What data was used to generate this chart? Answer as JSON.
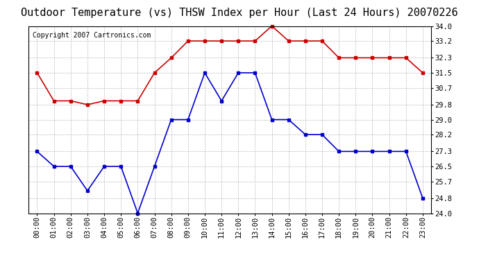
{
  "title": "Outdoor Temperature (vs) THSW Index per Hour (Last 24 Hours) 20070226",
  "copyright": "Copyright 2007 Cartronics.com",
  "hours": [
    "00:00",
    "01:00",
    "02:00",
    "03:00",
    "04:00",
    "05:00",
    "06:00",
    "07:00",
    "08:00",
    "09:00",
    "10:00",
    "11:00",
    "12:00",
    "13:00",
    "14:00",
    "15:00",
    "16:00",
    "17:00",
    "18:00",
    "19:00",
    "20:00",
    "21:00",
    "22:00",
    "23:00"
  ],
  "temp": [
    27.3,
    26.5,
    26.5,
    25.2,
    26.5,
    26.5,
    24.0,
    26.5,
    29.0,
    29.0,
    31.5,
    30.0,
    31.5,
    31.5,
    29.0,
    29.0,
    28.2,
    28.2,
    27.3,
    27.3,
    27.3,
    27.3,
    27.3,
    24.8
  ],
  "thsw": [
    31.5,
    30.0,
    30.0,
    29.8,
    30.0,
    30.0,
    30.0,
    31.5,
    32.3,
    33.2,
    33.2,
    33.2,
    33.2,
    33.2,
    34.0,
    33.2,
    33.2,
    33.2,
    32.3,
    32.3,
    32.3,
    32.3,
    32.3,
    31.5
  ],
  "temp_color": "#0000cc",
  "thsw_color": "#cc0000",
  "ylim_min": 24.0,
  "ylim_max": 34.0,
  "yticks": [
    24.0,
    24.8,
    25.7,
    26.5,
    27.3,
    28.2,
    29.0,
    29.8,
    30.7,
    31.5,
    32.3,
    33.2,
    34.0
  ],
  "ytick_labels": [
    "24.0",
    "24.8",
    "25.7",
    "26.5",
    "27.3",
    "28.2",
    "29.0",
    "29.8",
    "30.7",
    "31.5",
    "32.3",
    "33.2",
    "34.0"
  ],
  "bg_color": "#ffffff",
  "grid_color": "#bbbbbb",
  "title_fontsize": 11,
  "copyright_fontsize": 7,
  "tick_fontsize": 7.5,
  "marker": "s",
  "marker_size": 3.5,
  "line_width": 1.2
}
